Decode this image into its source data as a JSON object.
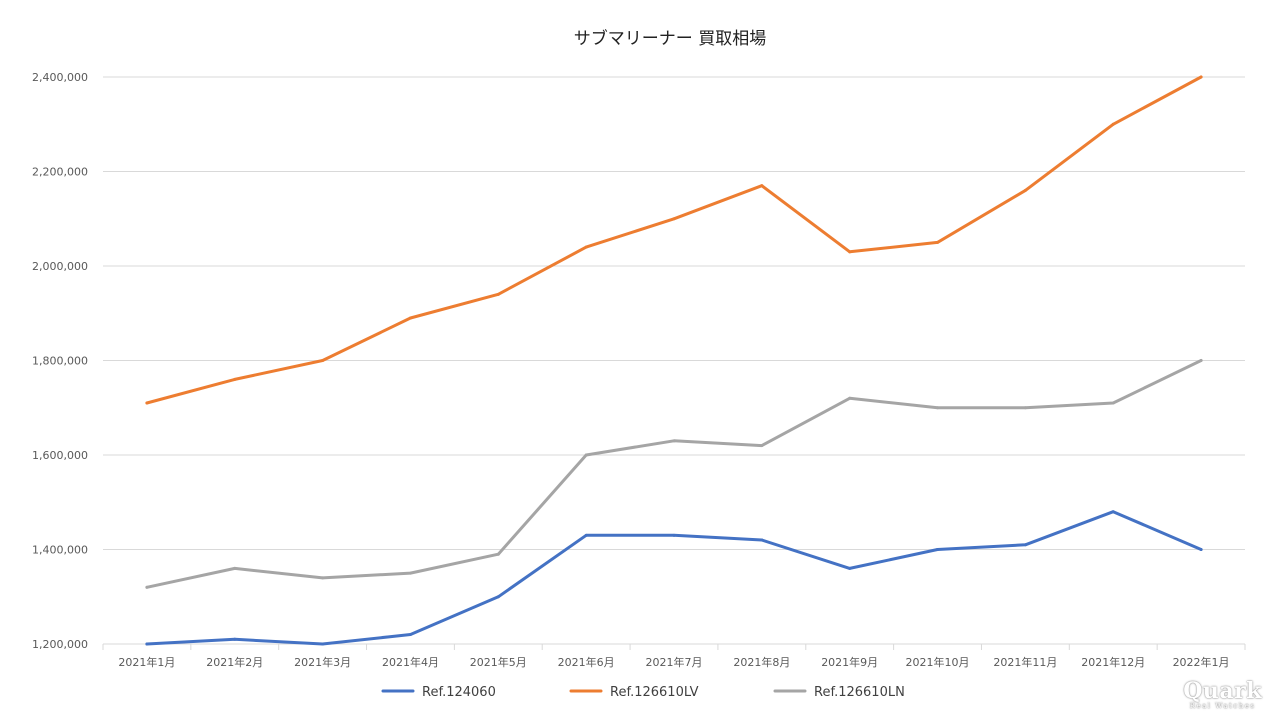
{
  "chart_data": {
    "type": "line",
    "title": "サブマリーナー 買取相場",
    "xlabel": "",
    "ylabel": "",
    "categories": [
      "2021年1月",
      "2021年2月",
      "2021年3月",
      "2021年4月",
      "2021年5月",
      "2021年6月",
      "2021年7月",
      "2021年8月",
      "2021年9月",
      "2021年10月",
      "2021年11月",
      "2021年12月",
      "2022年1月"
    ],
    "ylim": [
      1200000,
      2400000
    ],
    "yticks": [
      1200000,
      1400000,
      1600000,
      1800000,
      2000000,
      2200000,
      2400000
    ],
    "ytick_labels": [
      "1,200,000",
      "1,400,000",
      "1,600,000",
      "1,800,000",
      "2,000,000",
      "2,200,000",
      "2,400,000"
    ],
    "grid": true,
    "legend_position": "bottom",
    "series": [
      {
        "name": "Ref.124060",
        "color": "#4472C4",
        "values": [
          1200000,
          1210000,
          1200000,
          1220000,
          1300000,
          1430000,
          1430000,
          1420000,
          1360000,
          1400000,
          1410000,
          1480000,
          1400000
        ]
      },
      {
        "name": "Ref.126610LV",
        "color": "#ED7D31",
        "values": [
          1710000,
          1760000,
          1800000,
          1890000,
          1940000,
          2040000,
          2100000,
          2170000,
          2030000,
          2050000,
          2160000,
          2300000,
          2400000
        ]
      },
      {
        "name": "Ref.126610LN",
        "color": "#A5A5A5",
        "values": [
          1320000,
          1360000,
          1340000,
          1350000,
          1390000,
          1600000,
          1630000,
          1620000,
          1720000,
          1700000,
          1700000,
          1710000,
          1800000
        ]
      }
    ]
  },
  "watermark": {
    "main": "Quark",
    "sub": "Real Watches"
  }
}
